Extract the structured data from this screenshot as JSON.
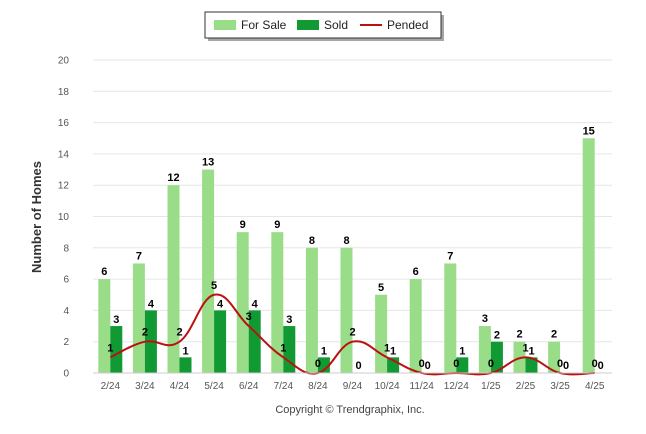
{
  "chart_data": {
    "type": "bar",
    "categories": [
      "2/24",
      "3/24",
      "4/24",
      "5/24",
      "6/24",
      "7/24",
      "8/24",
      "9/24",
      "10/24",
      "11/24",
      "12/24",
      "1/25",
      "2/25",
      "3/25",
      "4/25"
    ],
    "series": [
      {
        "name": "For Sale",
        "kind": "bar",
        "color": "#99dd88",
        "values": [
          6,
          7,
          12,
          13,
          9,
          9,
          8,
          8,
          5,
          6,
          7,
          3,
          2,
          2,
          15
        ]
      },
      {
        "name": "Sold",
        "kind": "bar",
        "color": "#119933",
        "values": [
          3,
          4,
          1,
          4,
          4,
          3,
          1,
          0,
          1,
          0,
          1,
          2,
          1,
          0,
          0
        ]
      },
      {
        "name": "Pended",
        "kind": "line",
        "color": "#bb1111",
        "values": [
          1,
          2,
          2,
          5,
          3,
          1,
          0,
          2,
          1,
          0,
          0,
          0,
          1,
          0,
          0
        ]
      }
    ],
    "ylabel": "Number of Homes",
    "xlabel": "",
    "ylim": [
      0,
      20
    ],
    "yticks": [
      0,
      2,
      4,
      6,
      8,
      10,
      12,
      14,
      16,
      18,
      20
    ],
    "grid": true,
    "legend_position": "top-center"
  },
  "footer": "Copyright © Trendgraphix, Inc."
}
